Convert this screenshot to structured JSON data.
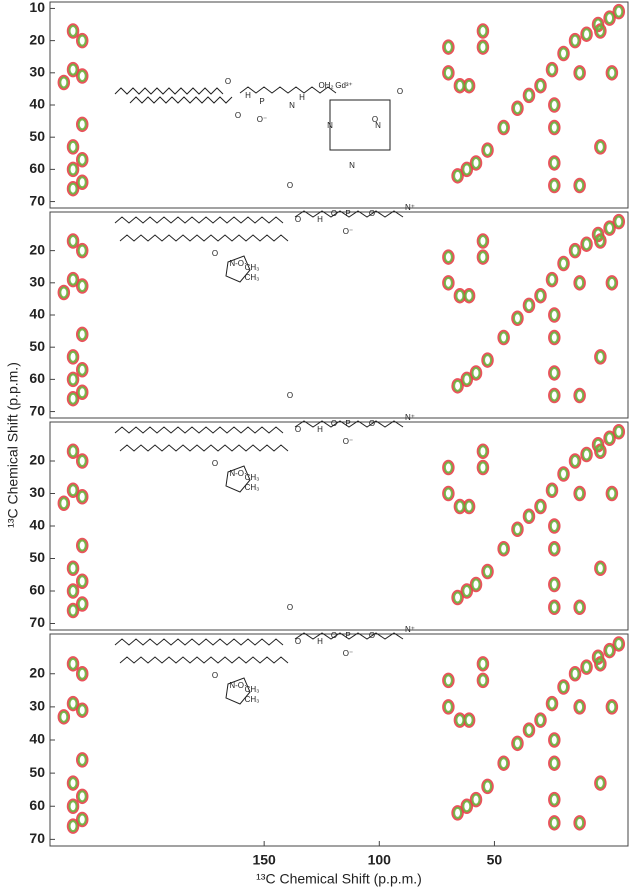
{
  "chart_data": [
    {
      "type": "scatter",
      "xlim": [
        243,
        -8
      ],
      "ylim": [
        8,
        72
      ],
      "yticks": [
        10,
        20,
        30,
        40,
        50,
        60,
        70
      ],
      "annotations": [
        "O",
        "O",
        "P",
        "O⁻",
        "H",
        "N",
        "H",
        "Gd³⁺",
        "OH₂",
        "N",
        "N",
        "N",
        "O",
        "O"
      ],
      "series": [
        {
          "color": "#e8404a",
          "x": [
            233,
            229,
            233,
            229,
            237,
            229,
            233,
            229,
            233,
            229,
            233,
            70,
            70,
            65,
            55,
            55,
            61,
            62,
            58,
            53,
            46,
            40,
            35,
            30,
            25,
            20,
            15,
            10,
            5,
            0,
            -4,
            24,
            24,
            13,
            4,
            24,
            24,
            4,
            -1,
            13,
            66
          ],
          "y": [
            17,
            20,
            29,
            31,
            33,
            46,
            53,
            57,
            60,
            64,
            66,
            22,
            30,
            34,
            17,
            22,
            34,
            60,
            58,
            54,
            47,
            41,
            37,
            34,
            29,
            24,
            20,
            18,
            15,
            13,
            11,
            58,
            65,
            65,
            53,
            40,
            47,
            17,
            30,
            30,
            62
          ]
        },
        {
          "color": "#6ab23e",
          "x": [
            233,
            229,
            233,
            229,
            237,
            229,
            233,
            229,
            233,
            229,
            233,
            70,
            70,
            65,
            55,
            55,
            61,
            62,
            58,
            53,
            46,
            40,
            35,
            30,
            25,
            20,
            15,
            10,
            5,
            0,
            -4,
            24,
            24,
            13,
            4,
            24,
            24,
            4,
            -1,
            13,
            66
          ],
          "y": [
            17,
            20,
            29,
            31,
            33,
            46,
            53,
            57,
            60,
            64,
            66,
            22,
            30,
            34,
            17,
            22,
            34,
            60,
            58,
            54,
            47,
            41,
            37,
            34,
            29,
            24,
            20,
            18,
            15,
            13,
            11,
            58,
            65,
            65,
            53,
            40,
            47,
            17,
            30,
            30,
            62
          ]
        }
      ]
    },
    {
      "type": "scatter",
      "xlim": [
        243,
        -8
      ],
      "ylim": [
        8,
        72
      ],
      "yticks": [
        20,
        30,
        40,
        50,
        60,
        70
      ],
      "ylabel": "¹³C Chemical Shift (p.p.m.)",
      "annotations": [
        "O",
        "O",
        "H",
        "O",
        "P",
        "O⁻",
        "O",
        "N⁺",
        "O",
        "N-O·",
        "CH₃",
        "CH₃"
      ],
      "series": [
        {
          "color": "#e8404a",
          "x": [
            233,
            229,
            233,
            229,
            237,
            229,
            233,
            229,
            233,
            229,
            233,
            70,
            70,
            65,
            55,
            55,
            61,
            62,
            58,
            53,
            46,
            40,
            35,
            30,
            25,
            20,
            15,
            10,
            5,
            0,
            -4,
            24,
            24,
            13,
            4,
            24,
            24,
            4,
            -1,
            13,
            66
          ],
          "y": [
            17,
            20,
            29,
            31,
            33,
            46,
            53,
            57,
            60,
            64,
            66,
            22,
            30,
            34,
            17,
            22,
            34,
            60,
            58,
            54,
            47,
            41,
            37,
            34,
            29,
            24,
            20,
            18,
            15,
            13,
            11,
            58,
            65,
            65,
            53,
            40,
            47,
            17,
            30,
            30,
            62
          ]
        },
        {
          "color": "#6ab23e",
          "x": [
            233,
            229,
            233,
            229,
            237,
            229,
            233,
            229,
            233,
            229,
            233,
            70,
            70,
            65,
            55,
            55,
            61,
            62,
            58,
            53,
            46,
            40,
            35,
            30,
            25,
            20,
            15,
            10,
            5,
            0,
            -4,
            24,
            24,
            13,
            4,
            24,
            24,
            4,
            -1,
            13,
            66
          ],
          "y": [
            17,
            20,
            29,
            31,
            33,
            46,
            53,
            57,
            60,
            64,
            66,
            22,
            30,
            34,
            17,
            22,
            34,
            60,
            58,
            54,
            47,
            41,
            37,
            34,
            29,
            24,
            20,
            18,
            15,
            13,
            11,
            58,
            65,
            65,
            53,
            40,
            47,
            17,
            30,
            30,
            62
          ]
        }
      ]
    },
    {
      "type": "scatter",
      "xlim": [
        243,
        -8
      ],
      "ylim": [
        8,
        72
      ],
      "yticks": [
        20,
        30,
        40,
        50,
        60,
        70
      ],
      "annotations": [
        "O",
        "O",
        "H",
        "O",
        "P",
        "O⁻",
        "O",
        "N⁺",
        "O",
        "N-O·",
        "CH₃",
        "CH₃"
      ],
      "series": [
        {
          "color": "#e8404a",
          "x": [
            233,
            229,
            233,
            229,
            237,
            229,
            233,
            229,
            233,
            229,
            233,
            70,
            70,
            65,
            55,
            55,
            61,
            62,
            58,
            53,
            46,
            40,
            35,
            30,
            25,
            20,
            15,
            10,
            5,
            0,
            -4,
            24,
            24,
            13,
            4,
            24,
            24,
            4,
            -1,
            13,
            66
          ],
          "y": [
            17,
            20,
            29,
            31,
            33,
            46,
            53,
            57,
            60,
            64,
            66,
            22,
            30,
            34,
            17,
            22,
            34,
            60,
            58,
            54,
            47,
            41,
            37,
            34,
            29,
            24,
            20,
            18,
            15,
            13,
            11,
            58,
            65,
            65,
            53,
            40,
            47,
            17,
            30,
            30,
            62
          ]
        },
        {
          "color": "#6ab23e",
          "x": [
            233,
            229,
            233,
            229,
            237,
            229,
            233,
            229,
            233,
            229,
            233,
            70,
            70,
            65,
            55,
            55,
            61,
            62,
            58,
            53,
            46,
            40,
            35,
            30,
            25,
            20,
            15,
            10,
            5,
            0,
            -4,
            24,
            24,
            13,
            4,
            24,
            24,
            4,
            -1,
            13,
            66
          ],
          "y": [
            17,
            20,
            29,
            31,
            33,
            46,
            53,
            57,
            60,
            64,
            66,
            22,
            30,
            34,
            17,
            22,
            34,
            60,
            58,
            54,
            47,
            41,
            37,
            34,
            29,
            24,
            20,
            18,
            15,
            13,
            11,
            58,
            65,
            65,
            53,
            40,
            47,
            17,
            30,
            30,
            62
          ]
        }
      ]
    },
    {
      "type": "scatter",
      "xlim": [
        243,
        -8
      ],
      "ylim": [
        8,
        72
      ],
      "yticks": [
        20,
        30,
        40,
        50,
        60,
        70
      ],
      "xticks": [
        150,
        100,
        50
      ],
      "xlabel": "¹³C Chemical Shift (p.p.m.)",
      "annotations": [
        "O",
        "O",
        "H",
        "O",
        "P",
        "O⁻",
        "O",
        "N⁺",
        "O",
        "N-O·",
        "CH₃",
        "CH₃"
      ],
      "series": [
        {
          "color": "#e8404a",
          "x": [
            233,
            229,
            233,
            229,
            237,
            229,
            233,
            229,
            233,
            229,
            233,
            70,
            70,
            65,
            55,
            55,
            61,
            62,
            58,
            53,
            46,
            40,
            35,
            30,
            25,
            20,
            15,
            10,
            5,
            0,
            -4,
            24,
            24,
            13,
            4,
            24,
            24,
            4,
            -1,
            13,
            66
          ],
          "y": [
            17,
            20,
            29,
            31,
            33,
            46,
            53,
            57,
            60,
            64,
            66,
            22,
            30,
            34,
            17,
            22,
            34,
            60,
            58,
            54,
            47,
            41,
            37,
            34,
            29,
            24,
            20,
            18,
            15,
            13,
            11,
            58,
            65,
            65,
            53,
            40,
            47,
            17,
            30,
            30,
            62
          ]
        },
        {
          "color": "#6ab23e",
          "x": [
            233,
            229,
            233,
            229,
            237,
            229,
            233,
            229,
            233,
            229,
            233,
            70,
            70,
            65,
            55,
            55,
            61,
            62,
            58,
            53,
            46,
            40,
            35,
            30,
            25,
            20,
            15,
            10,
            5,
            0,
            -4,
            24,
            24,
            13,
            4,
            24,
            24,
            4,
            -1,
            13,
            66
          ],
          "y": [
            17,
            20,
            29,
            31,
            33,
            46,
            53,
            57,
            60,
            64,
            66,
            22,
            30,
            34,
            17,
            22,
            34,
            60,
            58,
            54,
            47,
            41,
            37,
            34,
            29,
            24,
            20,
            18,
            15,
            13,
            11,
            58,
            65,
            65,
            53,
            40,
            47,
            17,
            30,
            30,
            62
          ]
        }
      ]
    }
  ]
}
